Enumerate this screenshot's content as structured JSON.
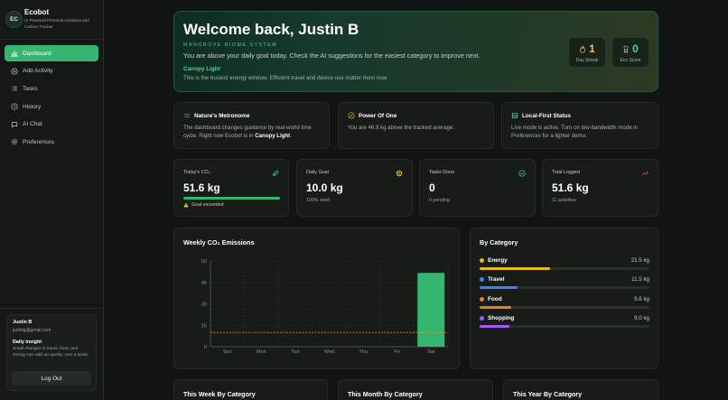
{
  "brand": {
    "initials": "EC",
    "title": "Ecobot",
    "subtitle": "AI Powered Personal Assistant and Carbon Tracker"
  },
  "nav": [
    {
      "label": "Dashboard",
      "icon": "bar-chart-icon",
      "active": true
    },
    {
      "label": "Add Activity",
      "icon": "plus-circle-icon",
      "active": false
    },
    {
      "label": "Tasks",
      "icon": "list-icon",
      "active": false
    },
    {
      "label": "History",
      "icon": "clock-icon",
      "active": false
    },
    {
      "label": "AI Chat",
      "icon": "chat-icon",
      "active": false
    },
    {
      "label": "Preferences",
      "icon": "gear-icon",
      "active": false
    }
  ],
  "user": {
    "name": "Justin B",
    "email": "justing@gmail.com",
    "insight_title": "Daily insight",
    "insight_text": "Small changes in travel, food, and energy use add up quickly over a week.",
    "logout_label": "Log Out"
  },
  "hero": {
    "title": "Welcome back, Justin B",
    "biome": "MANGROVE BIOME SYSTEM",
    "message": "You are above your daily goal today. Check the AI suggestions for the easiest category to improve next.",
    "link": "Canopy Light",
    "tip": "This is the busiest energy window. Efficient travel and device use matter most now.",
    "streak_value": "1",
    "streak_label": "Day Streak",
    "eco_value": "0",
    "eco_label": "Eco Score"
  },
  "info_cards": [
    {
      "title": "Nature's Metronome",
      "icon": "wave-icon",
      "text_before": "The dashboard changes guidance by real-world time cycle. Right now Ecobot is in ",
      "text_bold": "Canopy Light",
      "text_after": "."
    },
    {
      "title": "Power Of One",
      "icon": "coin-icon",
      "text_before": "You are 46.9 kg above the tracked average.",
      "text_bold": "",
      "text_after": ""
    },
    {
      "title": "Local-First Status",
      "icon": "database-icon",
      "text_before": "Live mode is active. Turn on low-bandwidth mode in Preferences for a lighter demo.",
      "text_bold": "",
      "text_after": ""
    }
  ],
  "metrics": {
    "todays_co2": {
      "label": "Today's CO₂",
      "value": "51.6 kg",
      "progress": 1.0,
      "warning": "Goal exceeded"
    },
    "daily_goal": {
      "label": "Daily Goal",
      "value": "10.0 kg",
      "sub": "100% used"
    },
    "tasks_done": {
      "label": "Tasks Done",
      "value": "0",
      "sub": "0 pending"
    },
    "total_logged": {
      "label": "Total Logged",
      "value": "51.6 kg",
      "sub": "11 activities"
    }
  },
  "weekly_title": "Weekly CO₂ Emissions",
  "chart_data": {
    "type": "bar",
    "title": "Weekly CO₂ Emissions",
    "categories": [
      "Sun",
      "Mon",
      "Tue",
      "Wed",
      "Thu",
      "Fri",
      "Sat"
    ],
    "values": [
      0,
      0,
      0,
      0,
      0,
      0,
      51.6
    ],
    "reference_line": 10,
    "ylim": [
      0,
      60
    ],
    "yticks": [
      0,
      15,
      30,
      45,
      60
    ],
    "grid": true,
    "bar_color": "#35b56f",
    "reference_color": "#d2903a"
  },
  "by_category": {
    "title": "By Category",
    "max": 51.6,
    "items": [
      {
        "name": "Energy",
        "value": "21.5 kg",
        "amount": 21.5,
        "color": "#e8b923"
      },
      {
        "name": "Travel",
        "value": "11.5 kg",
        "amount": 11.5,
        "color": "#3b82f6"
      },
      {
        "name": "Food",
        "value": "9.6 kg",
        "amount": 9.6,
        "color": "#f07a1f"
      },
      {
        "name": "Shopping",
        "value": "9.0 kg",
        "amount": 9.0,
        "color": "#a855f7"
      }
    ]
  },
  "bottom_titles": [
    "This Week By Category",
    "This Month By Category",
    "This Year By Category"
  ],
  "colors": {
    "accent": "#35b56f",
    "background": "#101412",
    "card": "#171c19"
  }
}
